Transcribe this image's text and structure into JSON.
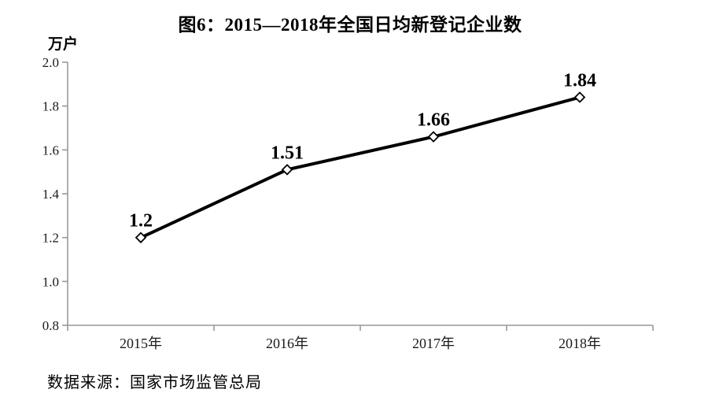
{
  "title": "图6：2015—2018年全国日均新登记企业数",
  "unit_label": "万户",
  "source_note": "数据来源：国家市场监管总局",
  "chart_data": {
    "type": "line",
    "title": "图6：2015—2018年全国日均新登记企业数",
    "categories": [
      "2015年",
      "2016年",
      "2017年",
      "2018年"
    ],
    "series": [
      {
        "name": "全国日均新登记企业数",
        "values": [
          1.2,
          1.51,
          1.66,
          1.84
        ]
      }
    ],
    "point_labels": [
      "1.2",
      "1.51",
      "1.66",
      "1.84"
    ],
    "xlabel": "",
    "ylabel": "万户",
    "ylim": [
      0.8,
      2.0
    ],
    "ytick_step": 0.2,
    "yticks": [
      "0.8",
      "1.0",
      "1.2",
      "1.4",
      "1.6",
      "1.8",
      "2.0"
    ],
    "grid": false,
    "legend_position": "none",
    "line_color": "#000000",
    "marker": "diamond-open",
    "marker_fill": "#ffffff",
    "axis_color": "#999999",
    "source": "数据来源：国家市场监管总局"
  }
}
